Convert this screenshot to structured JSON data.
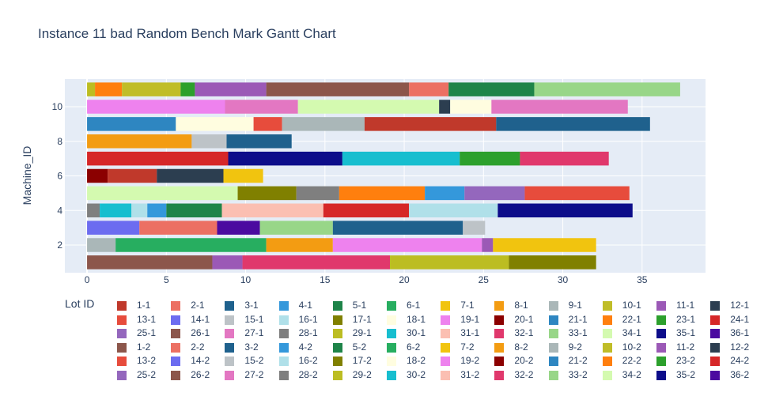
{
  "chart_data": {
    "type": "gantt",
    "title": "Instance 11 bad Random Bench Mark Gantt Chart",
    "ylabel": "Machine_ID",
    "xlabel": "",
    "legend_title": "Lot ID",
    "legend_position": "bottom",
    "grid": true,
    "xlim": [
      -1.4,
      39
    ],
    "ylim": [
      0.4,
      11.6
    ],
    "x_ticks": [
      0,
      5,
      10,
      15,
      20,
      25,
      30,
      35
    ],
    "y_ticks": [
      2,
      4,
      6,
      8,
      10
    ],
    "colors": {
      "1-1": "#c0392b",
      "2-1": "#ec7063",
      "3-1": "#1f618d",
      "4-1": "#3498db",
      "5-1": "#1e8449",
      "6-1": "#27ae60",
      "7-1": "#f1c40f",
      "8-1": "#f39c12",
      "9-1": "#aab7b8",
      "10-1": "#c0bd28",
      "11-1": "#9b59b6",
      "12-1": "#2c3e50",
      "13-1": "#e74c3c",
      "14-1": "#6c6cf0",
      "15-1": "#bdc3c7",
      "16-1": "#b0e0e9",
      "17-1": "#808000",
      "18-1": "#fffde0",
      "19-1": "#ee82ee",
      "20-1": "#8b0000",
      "21-1": "#2e86c1",
      "22-1": "#ff7f0e",
      "23-1": "#2ca02c",
      "24-1": "#d62728",
      "25-1": "#9467bd",
      "26-1": "#8c564b",
      "27-1": "#e377c2",
      "28-1": "#7f7f7f",
      "29-1": "#bcbd22",
      "30-1": "#17becf",
      "31-1": "#fbbfb2",
      "32-1": "#e0386c",
      "33-1": "#98d688",
      "34-1": "#d4fab0",
      "35-1": "#0d0d8a",
      "36-1": "#4b0aa0",
      "1-2": "#8c564b",
      "2-2": "#ec7063",
      "3-2": "#1f618d",
      "4-2": "#3498db",
      "5-2": "#1e8449",
      "6-2": "#27ae60",
      "7-2": "#f1c40f",
      "8-2": "#f39c12",
      "9-2": "#aab7b8",
      "10-2": "#c0bd28",
      "11-2": "#9b59b6",
      "12-2": "#2c3e50",
      "13-2": "#e74c3c",
      "14-2": "#6c6cf0",
      "15-2": "#bdc3c7",
      "16-2": "#b0e0e9",
      "17-2": "#808000",
      "18-2": "#fffde0",
      "19-2": "#ee82ee",
      "20-2": "#8b0000",
      "21-2": "#2e86c1",
      "22-2": "#ff7f0e",
      "23-2": "#2ca02c",
      "24-2": "#d62728",
      "25-2": "#9467bd",
      "26-2": "#8c564b",
      "27-2": "#e377c2",
      "28-2": "#7f7f7f",
      "29-2": "#bcbd22",
      "30-2": "#17becf",
      "31-2": "#fbbfb2",
      "32-2": "#e0386c",
      "33-2": "#98d688",
      "34-2": "#d4fab0",
      "35-2": "#0d0d8a",
      "36-2": "#4b0aa0"
    },
    "legend": [
      "1-1",
      "2-1",
      "3-1",
      "4-1",
      "5-1",
      "6-1",
      "7-1",
      "8-1",
      "9-1",
      "10-1",
      "11-1",
      "12-1",
      "13-1",
      "14-1",
      "15-1",
      "16-1",
      "17-1",
      "18-1",
      "19-1",
      "20-1",
      "21-1",
      "22-1",
      "23-1",
      "24-1",
      "25-1",
      "26-1",
      "27-1",
      "28-1",
      "29-1",
      "30-1",
      "31-1",
      "32-1",
      "33-1",
      "34-1",
      "35-1",
      "36-1",
      "1-2",
      "2-2",
      "3-2",
      "4-2",
      "5-2",
      "6-2",
      "7-2",
      "8-2",
      "9-2",
      "10-2",
      "11-2",
      "12-2",
      "13-2",
      "14-2",
      "15-2",
      "16-2",
      "17-2",
      "18-2",
      "19-2",
      "20-2",
      "21-2",
      "22-2",
      "23-2",
      "24-2",
      "25-2",
      "26-2",
      "27-2",
      "28-2",
      "29-2",
      "30-2",
      "31-2",
      "32-2",
      "33-2",
      "34-2",
      "35-2",
      "36-2"
    ],
    "tasks": [
      {
        "machine": 11,
        "start": 0.0,
        "end": 0.5,
        "color": "#bcbd22"
      },
      {
        "machine": 11,
        "start": 0.5,
        "end": 2.2,
        "color": "#ff7f0e"
      },
      {
        "machine": 11,
        "start": 2.2,
        "end": 5.9,
        "color": "#c0bd28"
      },
      {
        "machine": 11,
        "start": 5.9,
        "end": 6.8,
        "color": "#2ca02c"
      },
      {
        "machine": 11,
        "start": 6.8,
        "end": 11.3,
        "color": "#9b59b6"
      },
      {
        "machine": 11,
        "start": 11.3,
        "end": 20.3,
        "color": "#8c564b"
      },
      {
        "machine": 11,
        "start": 20.3,
        "end": 22.8,
        "color": "#ec7063"
      },
      {
        "machine": 11,
        "start": 22.8,
        "end": 28.2,
        "color": "#1e8449"
      },
      {
        "machine": 11,
        "start": 28.2,
        "end": 37.4,
        "color": "#98d688"
      },
      {
        "machine": 10,
        "start": 0.0,
        "end": 8.7,
        "color": "#ee82ee"
      },
      {
        "machine": 10,
        "start": 8.7,
        "end": 13.3,
        "color": "#e377c2"
      },
      {
        "machine": 10,
        "start": 13.3,
        "end": 22.2,
        "color": "#d4fab0"
      },
      {
        "machine": 10,
        "start": 22.2,
        "end": 22.9,
        "color": "#2c3e50"
      },
      {
        "machine": 10,
        "start": 22.9,
        "end": 25.5,
        "color": "#fffde0"
      },
      {
        "machine": 10,
        "start": 25.5,
        "end": 34.1,
        "color": "#e377c2"
      },
      {
        "machine": 9,
        "start": 0.0,
        "end": 5.6,
        "color": "#2e86c1"
      },
      {
        "machine": 9,
        "start": 5.6,
        "end": 10.5,
        "color": "#fffde0"
      },
      {
        "machine": 9,
        "start": 10.5,
        "end": 12.3,
        "color": "#e74c3c"
      },
      {
        "machine": 9,
        "start": 12.3,
        "end": 17.5,
        "color": "#aab7b8"
      },
      {
        "machine": 9,
        "start": 17.5,
        "end": 25.8,
        "color": "#c0392b"
      },
      {
        "machine": 9,
        "start": 25.8,
        "end": 35.5,
        "color": "#1f618d"
      },
      {
        "machine": 8,
        "start": 0.0,
        "end": 6.6,
        "color": "#f39c12"
      },
      {
        "machine": 8,
        "start": 6.6,
        "end": 8.8,
        "color": "#bdc3c7"
      },
      {
        "machine": 8,
        "start": 8.8,
        "end": 12.9,
        "color": "#1f618d"
      },
      {
        "machine": 7,
        "start": 0.0,
        "end": 8.9,
        "color": "#d62728"
      },
      {
        "machine": 7,
        "start": 8.9,
        "end": 16.1,
        "color": "#0d0d8a"
      },
      {
        "machine": 7,
        "start": 16.1,
        "end": 23.5,
        "color": "#17becf"
      },
      {
        "machine": 7,
        "start": 23.5,
        "end": 27.3,
        "color": "#2ca02c"
      },
      {
        "machine": 7,
        "start": 27.3,
        "end": 32.9,
        "color": "#e0386c"
      },
      {
        "machine": 6,
        "start": 0.0,
        "end": 1.3,
        "color": "#8b0000"
      },
      {
        "machine": 6,
        "start": 1.3,
        "end": 4.4,
        "color": "#c0392b"
      },
      {
        "machine": 6,
        "start": 4.4,
        "end": 8.6,
        "color": "#2c3e50"
      },
      {
        "machine": 6,
        "start": 8.6,
        "end": 11.1,
        "color": "#f1c40f"
      },
      {
        "machine": 5,
        "start": 0.0,
        "end": 9.5,
        "color": "#d4fab0"
      },
      {
        "machine": 5,
        "start": 9.5,
        "end": 13.2,
        "color": "#808000"
      },
      {
        "machine": 5,
        "start": 13.2,
        "end": 15.9,
        "color": "#7f7f7f"
      },
      {
        "machine": 5,
        "start": 15.9,
        "end": 21.3,
        "color": "#ff7f0e"
      },
      {
        "machine": 5,
        "start": 21.3,
        "end": 23.8,
        "color": "#3498db"
      },
      {
        "machine": 5,
        "start": 23.8,
        "end": 27.6,
        "color": "#9467bd"
      },
      {
        "machine": 5,
        "start": 27.6,
        "end": 34.2,
        "color": "#e74c3c"
      },
      {
        "machine": 4,
        "start": 0.0,
        "end": 0.8,
        "color": "#7f7f7f"
      },
      {
        "machine": 4,
        "start": 0.8,
        "end": 2.8,
        "color": "#17becf"
      },
      {
        "machine": 4,
        "start": 2.8,
        "end": 3.8,
        "color": "#b0e0e9"
      },
      {
        "machine": 4,
        "start": 3.8,
        "end": 5.0,
        "color": "#3498db"
      },
      {
        "machine": 4,
        "start": 5.0,
        "end": 8.5,
        "color": "#1e8449"
      },
      {
        "machine": 4,
        "start": 8.5,
        "end": 14.9,
        "color": "#fbbfb2"
      },
      {
        "machine": 4,
        "start": 14.9,
        "end": 20.3,
        "color": "#d62728"
      },
      {
        "machine": 4,
        "start": 20.3,
        "end": 25.9,
        "color": "#b0e0e9"
      },
      {
        "machine": 4,
        "start": 25.9,
        "end": 34.4,
        "color": "#0d0d8a"
      },
      {
        "machine": 3,
        "start": 0.0,
        "end": 3.3,
        "color": "#6c6cf0"
      },
      {
        "machine": 3,
        "start": 3.3,
        "end": 8.2,
        "color": "#ec7063"
      },
      {
        "machine": 3,
        "start": 8.2,
        "end": 10.9,
        "color": "#4b0aa0"
      },
      {
        "machine": 3,
        "start": 10.9,
        "end": 15.5,
        "color": "#98d688"
      },
      {
        "machine": 3,
        "start": 15.5,
        "end": 23.7,
        "color": "#1f618d"
      },
      {
        "machine": 3,
        "start": 23.7,
        "end": 25.1,
        "color": "#bdc3c7"
      },
      {
        "machine": 2,
        "start": 0.0,
        "end": 1.8,
        "color": "#aab7b8"
      },
      {
        "machine": 2,
        "start": 1.8,
        "end": 11.3,
        "color": "#27ae60"
      },
      {
        "machine": 2,
        "start": 11.3,
        "end": 15.5,
        "color": "#f39c12"
      },
      {
        "machine": 2,
        "start": 15.5,
        "end": 24.9,
        "color": "#ee82ee"
      },
      {
        "machine": 2,
        "start": 24.9,
        "end": 25.6,
        "color": "#9b59b6"
      },
      {
        "machine": 2,
        "start": 25.6,
        "end": 32.1,
        "color": "#f1c40f"
      },
      {
        "machine": 1,
        "start": 0.0,
        "end": 7.9,
        "color": "#8c564b"
      },
      {
        "machine": 1,
        "start": 7.9,
        "end": 9.8,
        "color": "#9b59b6"
      },
      {
        "machine": 1,
        "start": 9.8,
        "end": 19.1,
        "color": "#e0386c"
      },
      {
        "machine": 1,
        "start": 19.1,
        "end": 26.6,
        "color": "#bcbd22"
      },
      {
        "machine": 1,
        "start": 26.6,
        "end": 32.1,
        "color": "#808000"
      }
    ]
  }
}
